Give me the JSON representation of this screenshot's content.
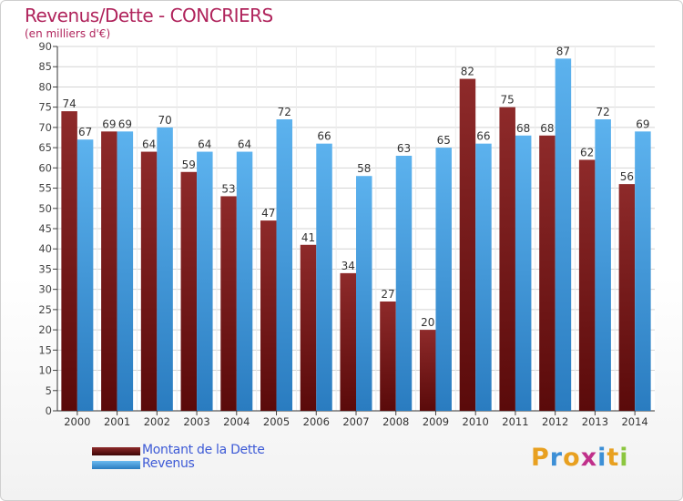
{
  "header": {
    "title": "Revenus/Dette - CONCRIERS",
    "subtitle": "(en milliers d'€)"
  },
  "legend": {
    "items": [
      {
        "label": "Montant de la Dette",
        "color": "#7b1c1c"
      },
      {
        "label": "Revenus",
        "color": "#4da6e6"
      }
    ]
  },
  "logo": {
    "letters": [
      "P",
      "r",
      "o",
      "x",
      "i",
      "t",
      "i"
    ],
    "colors": [
      "#e8a020",
      "#3c8fd6",
      "#e8a020",
      "#c0308a",
      "#3c8fd6",
      "#e8a020",
      "#8cc63f"
    ]
  },
  "chart_data": {
    "type": "bar",
    "title": "Revenus/Dette - CONCRIERS",
    "subtitle": "(en milliers d'€)",
    "categories": [
      "2000",
      "2001",
      "2002",
      "2003",
      "2004",
      "2005",
      "2006",
      "2007",
      "2008",
      "2009",
      "2010",
      "2011",
      "2012",
      "2013",
      "2014"
    ],
    "series": [
      {
        "name": "Montant de la Dette",
        "color": "#7b1c1c",
        "values": [
          74,
          69,
          64,
          59,
          53,
          47,
          41,
          34,
          27,
          20,
          82,
          75,
          68,
          62,
          56
        ]
      },
      {
        "name": "Revenus",
        "color": "#4da6e6",
        "values": [
          67,
          69,
          70,
          64,
          64,
          72,
          66,
          58,
          63,
          65,
          66,
          68,
          87,
          72,
          69
        ]
      }
    ],
    "ylim": [
      0,
      90
    ],
    "yticks": [
      0,
      5,
      10,
      15,
      20,
      25,
      30,
      35,
      40,
      45,
      50,
      55,
      60,
      65,
      70,
      75,
      80,
      85,
      90
    ],
    "grid": true,
    "legend_position": "bottom-left"
  }
}
